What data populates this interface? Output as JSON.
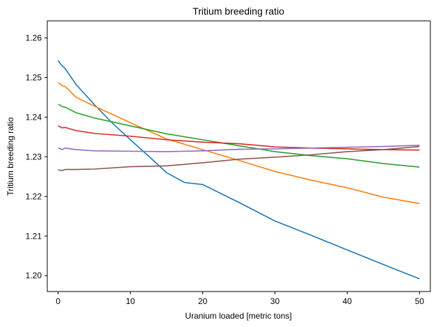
{
  "chart_data": {
    "type": "line",
    "title": "Tritium breeding ratio",
    "xlabel": "Uranium loaded [metric tons]",
    "ylabel": "Tritium breeding ratio",
    "xlim": [
      -1.5,
      51.5
    ],
    "ylim": [
      1.196,
      1.2643
    ],
    "xticks": [
      0,
      10,
      20,
      30,
      40,
      50
    ],
    "xtick_labels": [
      "0",
      "10",
      "20",
      "30",
      "40",
      "50"
    ],
    "yticks": [
      1.2,
      1.21,
      1.22,
      1.23,
      1.24,
      1.25,
      1.26
    ],
    "ytick_labels": [
      "1.20",
      "1.21",
      "1.22",
      "1.23",
      "1.24",
      "1.25",
      "1.26"
    ],
    "grid": false,
    "legend": "none",
    "series": [
      {
        "color": "#1f77b4",
        "points": [
          [
            0,
            1.2543
          ],
          [
            0.3,
            1.2535
          ],
          [
            0.5,
            1.2531
          ],
          [
            1,
            1.2522
          ],
          [
            2.5,
            1.2482
          ],
          [
            5,
            1.2432
          ],
          [
            7.5,
            1.2385
          ],
          [
            10,
            1.2343
          ],
          [
            12.5,
            1.2302
          ],
          [
            15,
            1.226
          ],
          [
            17.5,
            1.2235
          ],
          [
            20,
            1.223
          ],
          [
            25,
            1.2185
          ],
          [
            30,
            1.2138
          ],
          [
            35,
            1.2102
          ],
          [
            40,
            1.2065
          ],
          [
            45,
            1.2028
          ],
          [
            50,
            1.1992
          ]
        ]
      },
      {
        "color": "#ff7f0e",
        "points": [
          [
            0,
            1.2487
          ],
          [
            0.3,
            1.2484
          ],
          [
            0.5,
            1.248
          ],
          [
            1,
            1.2477
          ],
          [
            2.5,
            1.245
          ],
          [
            5,
            1.2428
          ],
          [
            7.5,
            1.2407
          ],
          [
            10,
            1.2386
          ],
          [
            15,
            1.2345
          ],
          [
            20,
            1.2318
          ],
          [
            25,
            1.2291
          ],
          [
            30,
            1.2263
          ],
          [
            35,
            1.2241
          ],
          [
            40,
            1.2222
          ],
          [
            45,
            1.2198
          ],
          [
            50,
            1.2182
          ]
        ]
      },
      {
        "color": "#2ca02c",
        "points": [
          [
            0,
            1.2432
          ],
          [
            0.3,
            1.243
          ],
          [
            0.5,
            1.2427
          ],
          [
            1,
            1.2425
          ],
          [
            2.5,
            1.2411
          ],
          [
            5,
            1.2398
          ],
          [
            10,
            1.2378
          ],
          [
            15,
            1.2358
          ],
          [
            20,
            1.2343
          ],
          [
            25,
            1.2328
          ],
          [
            30,
            1.2313
          ],
          [
            35,
            1.2303
          ],
          [
            40,
            1.2295
          ],
          [
            45,
            1.2283
          ],
          [
            50,
            1.2274
          ]
        ]
      },
      {
        "color": "#d62728",
        "points": [
          [
            0,
            1.2378
          ],
          [
            0.3,
            1.2376
          ],
          [
            0.5,
            1.2373
          ],
          [
            1,
            1.2374
          ],
          [
            2.5,
            1.2366
          ],
          [
            5,
            1.2359
          ],
          [
            10,
            1.2352
          ],
          [
            15,
            1.2343
          ],
          [
            20,
            1.2337
          ],
          [
            25,
            1.2333
          ],
          [
            30,
            1.2325
          ],
          [
            35,
            1.2322
          ],
          [
            40,
            1.232
          ],
          [
            45,
            1.2318
          ],
          [
            50,
            1.2317
          ]
        ]
      },
      {
        "color": "#9467bd",
        "points": [
          [
            0,
            1.2322
          ],
          [
            0.3,
            1.2321
          ],
          [
            0.5,
            1.2318
          ],
          [
            1,
            1.2322
          ],
          [
            2.5,
            1.2318
          ],
          [
            5,
            1.2315
          ],
          [
            10,
            1.2314
          ],
          [
            15,
            1.2313
          ],
          [
            20,
            1.2315
          ],
          [
            25,
            1.2319
          ],
          [
            30,
            1.232
          ],
          [
            35,
            1.2322
          ],
          [
            40,
            1.2324
          ],
          [
            45,
            1.2326
          ],
          [
            50,
            1.2329
          ]
        ]
      },
      {
        "color": "#8c564b",
        "points": [
          [
            0,
            1.2267
          ],
          [
            0.3,
            1.2266
          ],
          [
            0.5,
            1.2265
          ],
          [
            1,
            1.2268
          ],
          [
            2.5,
            1.2268
          ],
          [
            5,
            1.2269
          ],
          [
            10,
            1.2275
          ],
          [
            15,
            1.2277
          ],
          [
            20,
            1.2285
          ],
          [
            25,
            1.2294
          ],
          [
            30,
            1.2299
          ],
          [
            35,
            1.2305
          ],
          [
            40,
            1.2313
          ],
          [
            45,
            1.2318
          ],
          [
            50,
            1.2326
          ]
        ]
      }
    ]
  }
}
